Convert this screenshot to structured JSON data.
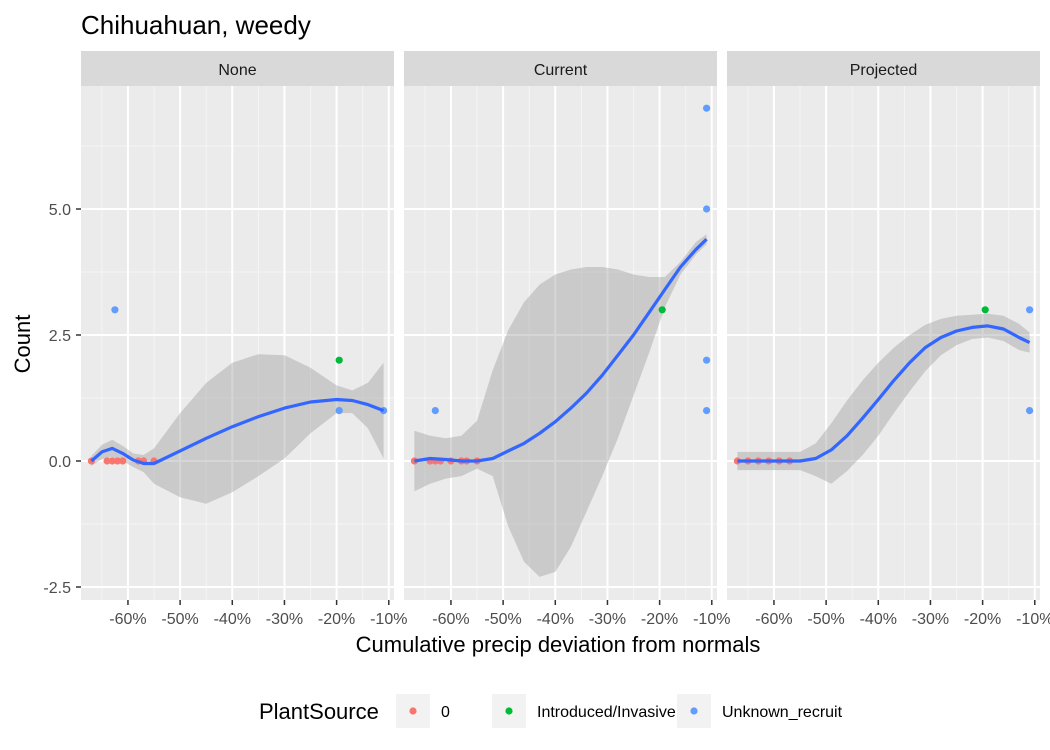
{
  "chart_data": {
    "type": "scatter",
    "title": "Chihuahuan, weedy",
    "xlabel": "Cumulative precip deviation from normals",
    "ylabel": "Count",
    "xlim": [
      -69,
      -9
    ],
    "ylim": [
      -2.5,
      7.0
    ],
    "x_ticks": [
      -60,
      -50,
      -40,
      -30,
      -20,
      -10
    ],
    "x_tick_labels": [
      "-60%",
      "-50%",
      "-40%",
      "-30%",
      "-20%",
      "-10%"
    ],
    "y_ticks": [
      -2.5,
      0.0,
      2.5,
      5.0
    ],
    "y_tick_labels": [
      "-2.5",
      "0.0",
      "2.5",
      "5.0"
    ],
    "grid": true,
    "legend": {
      "title": "PlantSource",
      "position": "bottom",
      "entries": [
        {
          "label": "0",
          "color": "#F8766D"
        },
        {
          "label": "Introduced/Invasive",
          "color": "#00BA38"
        },
        {
          "label": "Unknown_recruit",
          "color": "#619CFF"
        }
      ]
    },
    "smooth_color": "#3366FF",
    "ribbon_color": "#999999",
    "panels": [
      {
        "label": "None",
        "points": [
          {
            "x": -67,
            "y": 0,
            "s": 0
          },
          {
            "x": -64,
            "y": 0,
            "s": 0
          },
          {
            "x": -63,
            "y": 0,
            "s": 0
          },
          {
            "x": -62,
            "y": 0,
            "s": 0
          },
          {
            "x": -61,
            "y": 0,
            "s": 0
          },
          {
            "x": -58,
            "y": 0,
            "s": 0
          },
          {
            "x": -57,
            "y": 0,
            "s": 0
          },
          {
            "x": -55,
            "y": 0,
            "s": 0
          },
          {
            "x": -62.5,
            "y": 3,
            "s": 2
          },
          {
            "x": -19.5,
            "y": 2,
            "s": 1
          },
          {
            "x": -19.5,
            "y": 1,
            "s": 2
          },
          {
            "x": -11,
            "y": 1,
            "s": 2
          }
        ],
        "smooth": [
          [
            -67,
            0
          ],
          [
            -65,
            0.18
          ],
          [
            -63,
            0.25
          ],
          [
            -61,
            0.15
          ],
          [
            -59,
            0.02
          ],
          [
            -57,
            -0.05
          ],
          [
            -55,
            -0.05
          ],
          [
            -50,
            0.2
          ],
          [
            -45,
            0.45
          ],
          [
            -40,
            0.68
          ],
          [
            -35,
            0.88
          ],
          [
            -30,
            1.05
          ],
          [
            -25,
            1.17
          ],
          [
            -20,
            1.22
          ],
          [
            -17,
            1.2
          ],
          [
            -14,
            1.12
          ],
          [
            -11,
            1.0
          ]
        ],
        "upper": [
          [
            -67,
            0.1
          ],
          [
            -65,
            0.32
          ],
          [
            -63,
            0.42
          ],
          [
            -61,
            0.3
          ],
          [
            -59,
            0.15
          ],
          [
            -57,
            0.12
          ],
          [
            -55,
            0.25
          ],
          [
            -50,
            0.95
          ],
          [
            -45,
            1.55
          ],
          [
            -40,
            1.95
          ],
          [
            -35,
            2.12
          ],
          [
            -30,
            2.1
          ],
          [
            -25,
            1.85
          ],
          [
            -20,
            1.5
          ],
          [
            -17,
            1.4
          ],
          [
            -14,
            1.55
          ],
          [
            -11,
            1.95
          ]
        ],
        "lower": [
          [
            -67,
            -0.1
          ],
          [
            -65,
            0.04
          ],
          [
            -63,
            0.08
          ],
          [
            -61,
            0.0
          ],
          [
            -59,
            -0.12
          ],
          [
            -57,
            -0.22
          ],
          [
            -55,
            -0.45
          ],
          [
            -50,
            -0.72
          ],
          [
            -45,
            -0.85
          ],
          [
            -40,
            -0.62
          ],
          [
            -35,
            -0.3
          ],
          [
            -30,
            0.05
          ],
          [
            -25,
            0.55
          ],
          [
            -20,
            0.95
          ],
          [
            -17,
            0.95
          ],
          [
            -14,
            0.65
          ],
          [
            -11,
            0.05
          ]
        ]
      },
      {
        "label": "Current",
        "points": [
          {
            "x": -67,
            "y": 0,
            "s": 0
          },
          {
            "x": -64,
            "y": 0,
            "s": 0
          },
          {
            "x": -63,
            "y": 0,
            "s": 0
          },
          {
            "x": -62,
            "y": 0,
            "s": 0
          },
          {
            "x": -60,
            "y": 0,
            "s": 0
          },
          {
            "x": -58,
            "y": 0,
            "s": 0
          },
          {
            "x": -57,
            "y": 0,
            "s": 0
          },
          {
            "x": -55,
            "y": 0,
            "s": 0
          },
          {
            "x": -63,
            "y": 1,
            "s": 2
          },
          {
            "x": -19.5,
            "y": 3,
            "s": 1
          },
          {
            "x": -11,
            "y": 7,
            "s": 2
          },
          {
            "x": -11,
            "y": 5,
            "s": 2
          },
          {
            "x": -11,
            "y": 2,
            "s": 2
          },
          {
            "x": -11,
            "y": 1,
            "s": 2
          }
        ],
        "smooth": [
          [
            -67,
            0
          ],
          [
            -64,
            0.05
          ],
          [
            -61,
            0.03
          ],
          [
            -58,
            0.0
          ],
          [
            -55,
            0.0
          ],
          [
            -52,
            0.05
          ],
          [
            -49,
            0.2
          ],
          [
            -46,
            0.35
          ],
          [
            -43,
            0.55
          ],
          [
            -40,
            0.78
          ],
          [
            -37,
            1.05
          ],
          [
            -34,
            1.35
          ],
          [
            -31,
            1.7
          ],
          [
            -28,
            2.1
          ],
          [
            -25,
            2.5
          ],
          [
            -22,
            2.95
          ],
          [
            -19,
            3.4
          ],
          [
            -16,
            3.85
          ],
          [
            -13,
            4.2
          ],
          [
            -11,
            4.4
          ]
        ],
        "upper": [
          [
            -67,
            0.6
          ],
          [
            -64,
            0.5
          ],
          [
            -61,
            0.45
          ],
          [
            -58,
            0.5
          ],
          [
            -55,
            0.8
          ],
          [
            -52,
            1.8
          ],
          [
            -49,
            2.6
          ],
          [
            -46,
            3.15
          ],
          [
            -43,
            3.5
          ],
          [
            -40,
            3.7
          ],
          [
            -37,
            3.8
          ],
          [
            -34,
            3.85
          ],
          [
            -31,
            3.85
          ],
          [
            -28,
            3.8
          ],
          [
            -25,
            3.7
          ],
          [
            -22,
            3.65
          ],
          [
            -19,
            3.65
          ],
          [
            -16,
            3.95
          ],
          [
            -13,
            4.35
          ],
          [
            -11,
            4.5
          ]
        ],
        "lower": [
          [
            -67,
            -0.6
          ],
          [
            -64,
            -0.45
          ],
          [
            -61,
            -0.35
          ],
          [
            -58,
            -0.3
          ],
          [
            -55,
            -0.15
          ],
          [
            -52,
            -0.3
          ],
          [
            -49,
            -1.3
          ],
          [
            -46,
            -2.0
          ],
          [
            -43,
            -2.3
          ],
          [
            -40,
            -2.2
          ],
          [
            -37,
            -1.7
          ],
          [
            -34,
            -1.0
          ],
          [
            -31,
            -0.3
          ],
          [
            -28,
            0.45
          ],
          [
            -25,
            1.3
          ],
          [
            -22,
            2.15
          ],
          [
            -19,
            3.05
          ],
          [
            -16,
            3.7
          ],
          [
            -13,
            4.1
          ],
          [
            -11,
            4.3
          ]
        ]
      },
      {
        "label": "Projected",
        "points": [
          {
            "x": -67,
            "y": 0,
            "s": 0
          },
          {
            "x": -65,
            "y": 0,
            "s": 0
          },
          {
            "x": -63,
            "y": 0,
            "s": 0
          },
          {
            "x": -61,
            "y": 0,
            "s": 0
          },
          {
            "x": -59,
            "y": 0,
            "s": 0
          },
          {
            "x": -57,
            "y": 0,
            "s": 0
          },
          {
            "x": -19.5,
            "y": 3,
            "s": 1
          },
          {
            "x": -11,
            "y": 3,
            "s": 2
          },
          {
            "x": -11,
            "y": 1,
            "s": 2
          }
        ],
        "smooth": [
          [
            -67,
            0
          ],
          [
            -63,
            0
          ],
          [
            -59,
            0
          ],
          [
            -55,
            0
          ],
          [
            -52,
            0.05
          ],
          [
            -49,
            0.22
          ],
          [
            -46,
            0.5
          ],
          [
            -43,
            0.85
          ],
          [
            -40,
            1.22
          ],
          [
            -37,
            1.6
          ],
          [
            -34,
            1.95
          ],
          [
            -31,
            2.25
          ],
          [
            -28,
            2.45
          ],
          [
            -25,
            2.58
          ],
          [
            -22,
            2.65
          ],
          [
            -19,
            2.68
          ],
          [
            -16,
            2.62
          ],
          [
            -13,
            2.45
          ],
          [
            -11,
            2.35
          ]
        ],
        "upper": [
          [
            -67,
            0.18
          ],
          [
            -63,
            0.18
          ],
          [
            -59,
            0.18
          ],
          [
            -55,
            0.18
          ],
          [
            -52,
            0.35
          ],
          [
            -49,
            0.75
          ],
          [
            -46,
            1.2
          ],
          [
            -43,
            1.6
          ],
          [
            -40,
            1.95
          ],
          [
            -37,
            2.25
          ],
          [
            -34,
            2.5
          ],
          [
            -31,
            2.7
          ],
          [
            -28,
            2.82
          ],
          [
            -25,
            2.88
          ],
          [
            -22,
            2.9
          ],
          [
            -19,
            2.92
          ],
          [
            -16,
            2.88
          ],
          [
            -13,
            2.72
          ],
          [
            -11,
            2.55
          ]
        ],
        "lower": [
          [
            -67,
            -0.18
          ],
          [
            -63,
            -0.18
          ],
          [
            -59,
            -0.18
          ],
          [
            -55,
            -0.18
          ],
          [
            -52,
            -0.3
          ],
          [
            -49,
            -0.45
          ],
          [
            -46,
            -0.2
          ],
          [
            -43,
            0.12
          ],
          [
            -40,
            0.5
          ],
          [
            -37,
            0.95
          ],
          [
            -34,
            1.38
          ],
          [
            -31,
            1.78
          ],
          [
            -28,
            2.1
          ],
          [
            -25,
            2.3
          ],
          [
            -22,
            2.42
          ],
          [
            -19,
            2.45
          ],
          [
            -16,
            2.38
          ],
          [
            -13,
            2.2
          ],
          [
            -11,
            2.15
          ]
        ]
      }
    ]
  }
}
